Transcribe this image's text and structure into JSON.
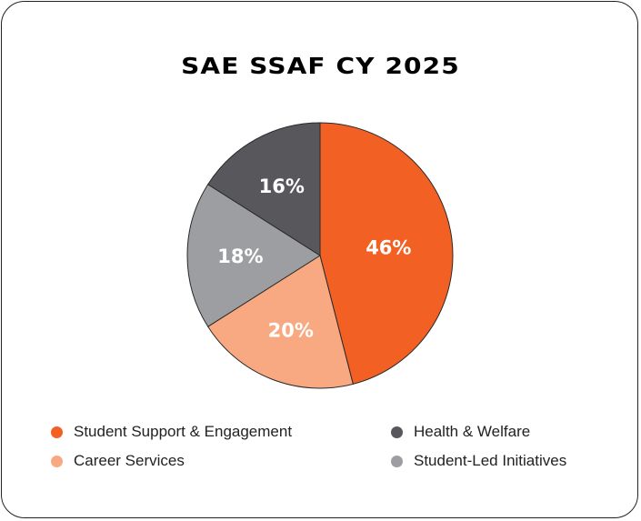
{
  "chart_data": {
    "type": "pie",
    "title": "SAE SSAF CY 2025",
    "slices": [
      {
        "label": "Student Support & Engagement",
        "value": 46,
        "display": "46%",
        "color": "#F26024"
      },
      {
        "label": "Career Services",
        "value": 20,
        "display": "20%",
        "color": "#F9A981"
      },
      {
        "label": "Student-Led Initiatives",
        "value": 18,
        "display": "18%",
        "color": "#9D9EA2"
      },
      {
        "label": "Health & Welfare",
        "value": 16,
        "display": "16%",
        "color": "#58575C"
      }
    ],
    "start": "top",
    "direction": "clockwise",
    "legend_position": "bottom"
  }
}
